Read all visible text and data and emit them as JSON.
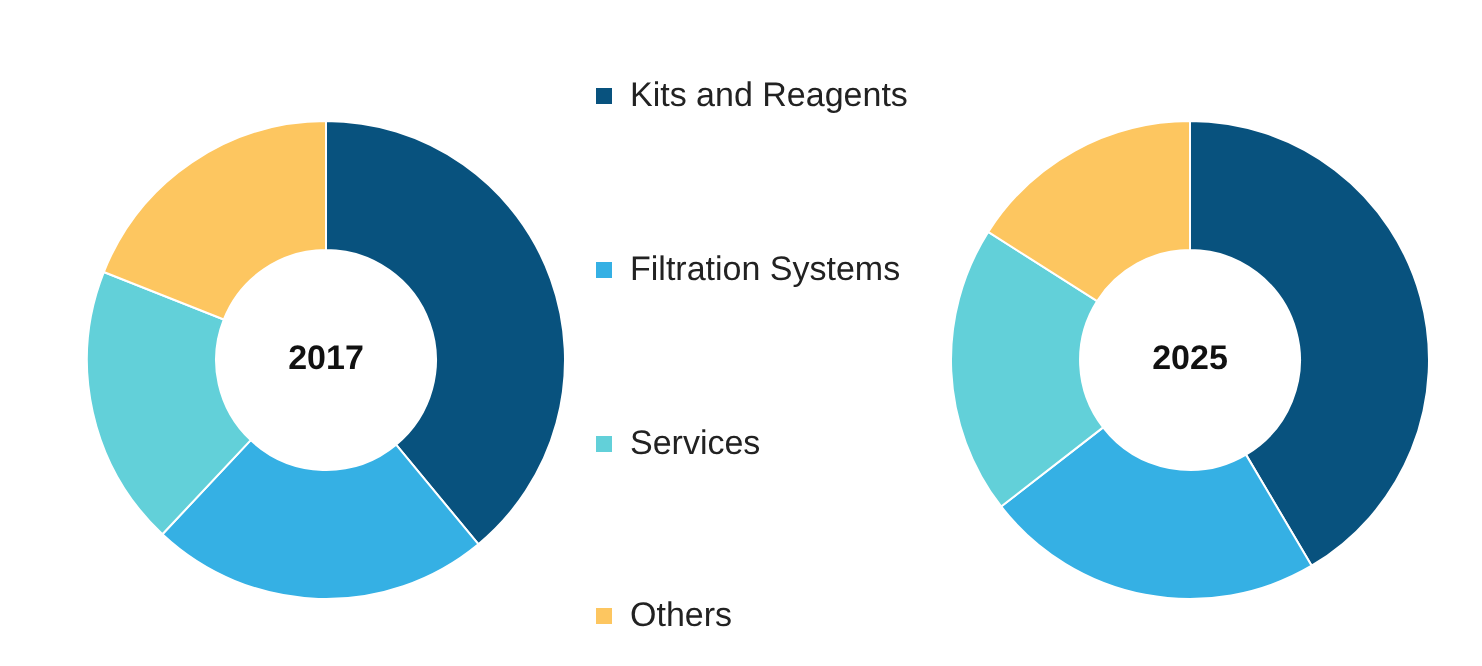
{
  "chart_data": {
    "type": "donut",
    "categories": [
      "Kits and Reagents",
      "Filtration Systems",
      "Services",
      "Others"
    ],
    "colors": [
      "#08527e",
      "#35b0e4",
      "#62d0d9",
      "#fdc660"
    ],
    "legend": "right",
    "series": [
      {
        "name": "2017",
        "values": [
          39,
          23,
          19,
          19
        ]
      },
      {
        "name": "2025",
        "values": [
          41.5,
          23,
          19.5,
          16
        ]
      }
    ]
  }
}
